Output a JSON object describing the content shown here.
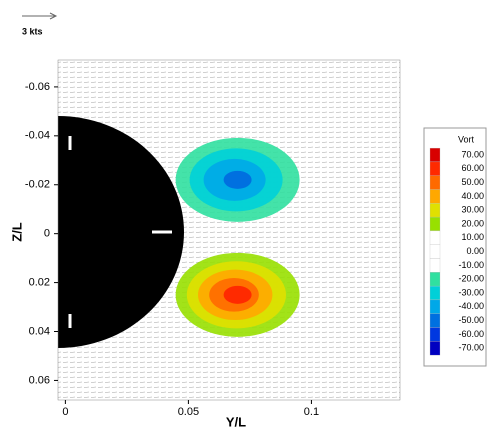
{
  "chart_data": {
    "type": "contour",
    "x_label": "Y/L",
    "y_label": "Z/L",
    "reference_vector_label": "3 kts",
    "xlim": [
      -0.003,
      0.136
    ],
    "ylim": [
      -0.071,
      0.068
    ],
    "y_inverted": true,
    "xticks": [
      0,
      0.05,
      0.1
    ],
    "yticks": [
      {
        "value": -0.06,
        "label": "-0.06"
      },
      {
        "value": -0.04,
        "label": "-0.04"
      },
      {
        "value": -0.02,
        "label": "-0.02"
      },
      0,
      {
        "value": 0.02,
        "label": "0.02"
      },
      {
        "value": 0.04,
        "label": "0.04"
      },
      {
        "value": 0.06,
        "label": "0.06"
      }
    ],
    "colorbar": {
      "title": "Vort",
      "levels": [
        {
          "value": 70,
          "label": "70.00"
        },
        {
          "value": 60,
          "label": "60.00"
        },
        {
          "value": 50,
          "label": "50.00"
        },
        {
          "value": 40,
          "label": "40.00"
        },
        {
          "value": 30,
          "label": "30.00"
        },
        {
          "value": 20,
          "label": "20.00"
        },
        {
          "value": 10,
          "label": "10.00"
        },
        {
          "value": 0,
          "label": "0.00"
        },
        {
          "value": -10,
          "label": "-10.00"
        },
        {
          "value": -20,
          "label": "-20.00"
        },
        {
          "value": -30,
          "label": "-30.00"
        },
        {
          "value": -40,
          "label": "-40.00"
        },
        {
          "value": -50,
          "label": "-50.00"
        },
        {
          "value": -60,
          "label": "-60.00"
        },
        {
          "value": -70,
          "label": "-70.00"
        }
      ],
      "colors": [
        "#d80000",
        "#ff2a00",
        "#ff6a00",
        "#ffa800",
        "#e0e000",
        "#98e000",
        "#ffffff",
        "#ffffff",
        "#ffffff",
        "#30e0a0",
        "#00d0d8",
        "#00a8e8",
        "#0070e0",
        "#0038e0",
        "#0000c0"
      ]
    },
    "vortices": [
      {
        "x": 0.07,
        "y": -0.022,
        "value": -50
      },
      {
        "x": 0.07,
        "y": 0.025,
        "value": 60
      }
    ]
  }
}
